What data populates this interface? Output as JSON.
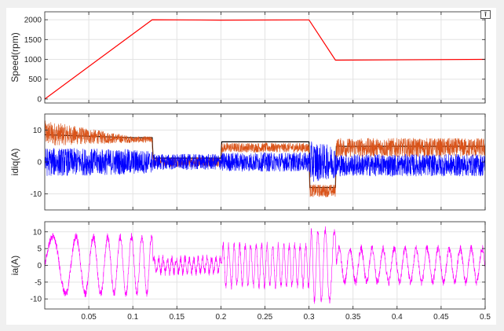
{
  "toolbar": {
    "export_icon": "export-arrow-icon"
  },
  "chart_data": [
    {
      "type": "line",
      "ylabel": "Speed(rpm)",
      "xlim": [
        0,
        0.5
      ],
      "ylim": [
        -100,
        2200
      ],
      "yticks": [
        0,
        500,
        1000,
        1500,
        2000
      ],
      "xticks": [
        0.05,
        0.1,
        0.15,
        0.2,
        0.25,
        0.3,
        0.35,
        0.4,
        0.45,
        0.5
      ],
      "grid": true,
      "series": [
        {
          "color": "#ff0000",
          "x": [
            0,
            0.122,
            0.2,
            0.3,
            0.33,
            0.5
          ],
          "y": [
            0,
            2000,
            1990,
            1995,
            980,
            1000
          ]
        }
      ]
    },
    {
      "type": "line",
      "ylabel": "idiq(A)",
      "xlim": [
        0,
        0.5
      ],
      "ylim": [
        -15,
        15
      ],
      "yticks": [
        -10,
        0,
        10
      ],
      "xticks": [
        0.05,
        0.1,
        0.15,
        0.2,
        0.25,
        0.3,
        0.35,
        0.4,
        0.45,
        0.5
      ],
      "grid": true,
      "series": [
        {
          "color": "#000000",
          "x": [
            0,
            0.1,
            0.122,
            0.123,
            0.2,
            0.201,
            0.3,
            0.301,
            0.33,
            0.331,
            0.5
          ],
          "y": [
            8.5,
            7.6,
            7.6,
            1.2,
            1.2,
            6.3,
            6.3,
            -8.0,
            -8.0,
            4.9,
            4.9
          ]
        },
        {
          "color": "#d95319",
          "x": [
            0,
            0.1,
            0.122,
            0.123,
            0.2,
            0.201,
            0.3,
            0.301,
            0.33,
            0.331,
            0.5
          ],
          "y": [
            9.0,
            7.0,
            7.0,
            0.0,
            0.0,
            4.5,
            4.5,
            -9.0,
            -9.0,
            4.5,
            4.5
          ],
          "noise": [
            4.0,
            1.0,
            1.0,
            1.5,
            1.5,
            1.5,
            1.5,
            2.0,
            2.0,
            3.0,
            3.0
          ]
        },
        {
          "color": "#0000ff",
          "x": [
            0,
            0.1,
            0.122,
            0.123,
            0.2,
            0.201,
            0.3,
            0.301,
            0.33,
            0.331,
            0.5
          ],
          "y": [
            0,
            0,
            0,
            0,
            0,
            0,
            0,
            0,
            0,
            -1.0,
            -1.0
          ],
          "noise": [
            4.5,
            4.0,
            3.5,
            2.5,
            2.5,
            3.0,
            3.0,
            6.5,
            5.0,
            3.5,
            3.5
          ]
        }
      ]
    },
    {
      "type": "line",
      "ylabel": "ia(A)",
      "xlim": [
        0,
        0.5
      ],
      "ylim": [
        -13,
        13
      ],
      "yticks": [
        -10,
        -5,
        0,
        5,
        10
      ],
      "xticks": [
        0.05,
        0.1,
        0.15,
        0.2,
        0.25,
        0.3,
        0.35,
        0.4,
        0.45,
        0.5
      ],
      "xticklabels": [
        "0.05",
        "0.1",
        "0.15",
        "0.2",
        "0.25",
        "0.3",
        "0.35",
        "0.4",
        "0.45",
        "0.5"
      ],
      "grid": true,
      "series": [
        {
          "color": "#ff00ff",
          "segments": [
            {
              "t0": 0,
              "t1": 0.122,
              "amp": [
                8.5,
                8.5
              ],
              "f": [
                25,
                95
              ]
            },
            {
              "t0": 0.123,
              "t1": 0.2,
              "amp": [
                2.0,
                2.0
              ],
              "f": [
                200,
                200
              ]
            },
            {
              "t0": 0.201,
              "t1": 0.3,
              "amp": [
                6.0,
                6.0
              ],
              "f": [
                160,
                160
              ]
            },
            {
              "t0": 0.301,
              "t1": 0.33,
              "amp": [
                10.5,
                10.5
              ],
              "f": [
                150,
                80
              ]
            },
            {
              "t0": 0.331,
              "t1": 0.5,
              "amp": [
                5.0,
                5.0
              ],
              "f": [
                80,
                80
              ]
            }
          ],
          "noise": 1.2
        }
      ]
    }
  ]
}
